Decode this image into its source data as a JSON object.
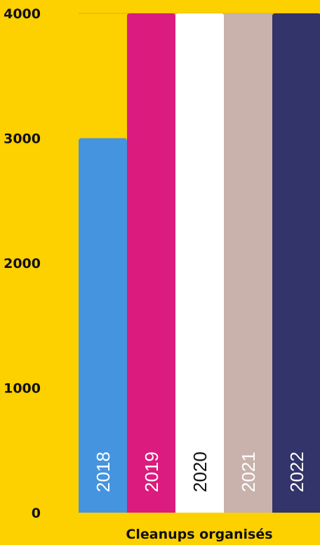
{
  "chart_data": {
    "type": "bar",
    "categories": [
      "2018",
      "2019",
      "2020",
      "2021",
      "2022"
    ],
    "values": [
      3000,
      4000,
      4000,
      4000,
      4000
    ],
    "ylim": [
      0,
      4000
    ],
    "yticks": [
      "0",
      "1000",
      "2000",
      "3000",
      "4000"
    ],
    "xlabel": "Cleanups organisés",
    "ylabel": "",
    "grid": false,
    "legend": "none",
    "colors": [
      "#4494DF",
      "#DB1B7E",
      "#FFFFFF",
      "#C8B2AB",
      "#32346A"
    ],
    "label_colors": [
      "#FFFFFF",
      "#FFFFFF",
      "#111111",
      "#FFFFFF",
      "#FFFFFF"
    ],
    "background": "#FDD000"
  }
}
